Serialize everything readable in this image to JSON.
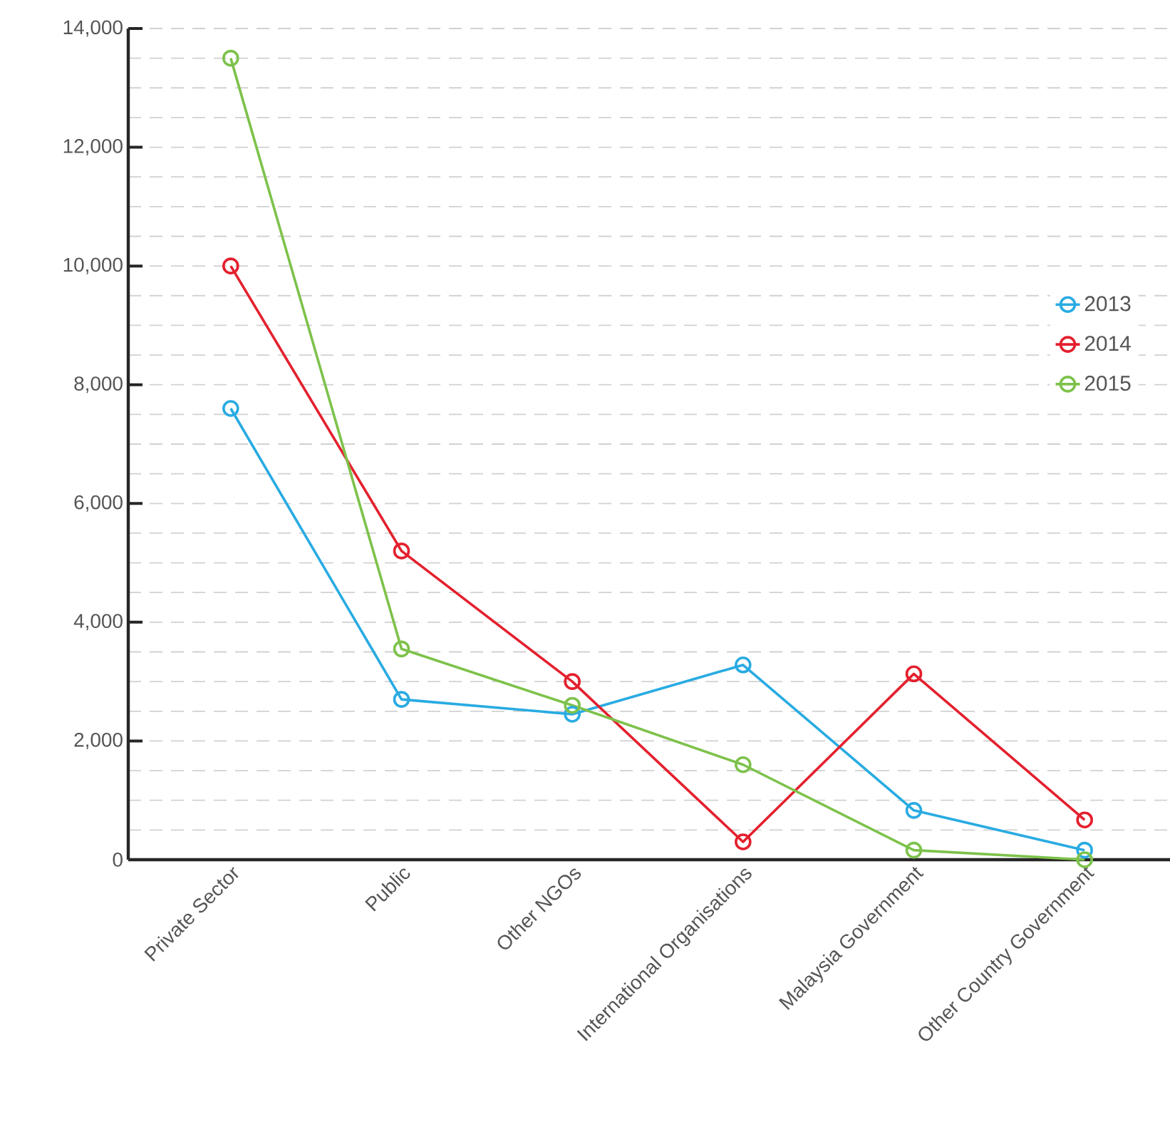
{
  "chart_data": {
    "type": "line",
    "categories": [
      "Private Sector",
      "Public",
      "Other NGOs",
      "International Organisations",
      "Malaysia Government",
      "Other Country Government"
    ],
    "series": [
      {
        "name": "2013",
        "color": "#29abe2",
        "values": [
          7600,
          2700,
          2450,
          3280,
          830,
          160
        ]
      },
      {
        "name": "2014",
        "color": "#e4202e",
        "values": [
          10000,
          5200,
          3000,
          300,
          3130,
          670
        ]
      },
      {
        "name": "2015",
        "color": "#7dc24b",
        "values": [
          13500,
          3550,
          2600,
          1600,
          160,
          0
        ]
      }
    ],
    "ylim": [
      0,
      14000
    ],
    "yticks": [
      {
        "value": 0,
        "label": "0"
      },
      {
        "value": 2000,
        "label": "2,000"
      },
      {
        "value": 4000,
        "label": "4,000"
      },
      {
        "value": 6000,
        "label": "6,000"
      },
      {
        "value": 8000,
        "label": "8,000"
      },
      {
        "value": 10000,
        "label": "10,000"
      },
      {
        "value": 12000,
        "label": "12,000"
      },
      {
        "value": 14000,
        "label": "14,000"
      }
    ],
    "grid": "y",
    "legend": "right",
    "marker": "circle",
    "line_style": "solid"
  }
}
